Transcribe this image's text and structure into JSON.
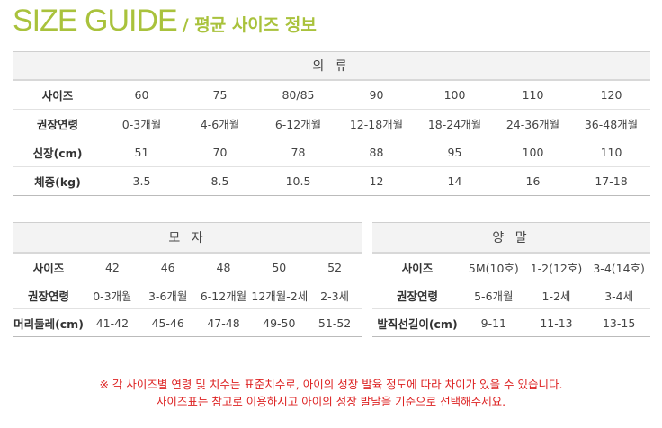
{
  "title": {
    "en": "SIZE GUIDE",
    "ko": "/ 평균 사이즈 정보"
  },
  "clothing": {
    "header": "의 류",
    "rows": [
      {
        "label": "사이즈",
        "values": [
          "60",
          "75",
          "80/85",
          "90",
          "100",
          "110",
          "120"
        ]
      },
      {
        "label": "권장연령",
        "values": [
          "0-3개월",
          "4-6개월",
          "6-12개월",
          "12-18개월",
          "18-24개월",
          "24-36개월",
          "36-48개월"
        ]
      },
      {
        "label": "신장(cm)",
        "values": [
          "51",
          "70",
          "78",
          "88",
          "95",
          "100",
          "110"
        ]
      },
      {
        "label": "체중(kg)",
        "values": [
          "3.5",
          "8.5",
          "10.5",
          "12",
          "14",
          "16",
          "17-18"
        ]
      }
    ]
  },
  "hat": {
    "header": "모 자",
    "rows": [
      {
        "label": "사이즈",
        "values": [
          "42",
          "46",
          "48",
          "50",
          "52"
        ]
      },
      {
        "label": "권장연령",
        "values": [
          "0-3개월",
          "3-6개월",
          "6-12개월",
          "12개월-2세",
          "2-3세"
        ]
      },
      {
        "label": "머리둘레(cm)",
        "values": [
          "41-42",
          "45-46",
          "47-48",
          "49-50",
          "51-52"
        ]
      }
    ]
  },
  "socks": {
    "header": "양 말",
    "rows": [
      {
        "label": "사이즈",
        "values": [
          "5M(10호)",
          "1-2(12호)",
          "3-4(14호)"
        ]
      },
      {
        "label": "권장연령",
        "values": [
          "5-6개월",
          "1-2세",
          "3-4세"
        ]
      },
      {
        "label": "발직선길이(cm)",
        "values": [
          "9-11",
          "11-13",
          "13-15"
        ]
      }
    ]
  },
  "notes": [
    "※ 각 사이즈별 연령 및 치수는 표준치수로, 아이의 성장 발육 정도에 따라 차이가 있을 수 있습니다.",
    "사이즈표는 참고로 이용하시고 아이의 성장 발달을 기준으로 선택해주세요."
  ]
}
